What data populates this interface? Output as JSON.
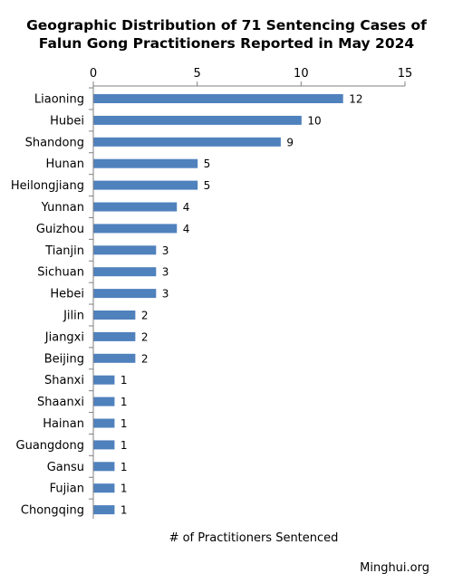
{
  "chart_data": {
    "type": "bar",
    "orientation": "horizontal",
    "title_line1": "Geographic Distribution of 71 Sentencing Cases of",
    "title_line2": "Falun Gong Practitioners Reported in May 2024",
    "xlabel": "# of Practitioners Sentenced",
    "ylabel": "",
    "xlim": [
      0,
      15
    ],
    "xticks": [
      0,
      5,
      10,
      15
    ],
    "x_axis_position": "top",
    "grid": false,
    "legend": "none",
    "bar_color": "#4f81bd",
    "data_labels": true,
    "categories": [
      "Liaoning",
      "Hubei",
      "Shandong",
      "Hunan",
      "Heilongjiang",
      "Yunnan",
      "Guizhou",
      "Tianjin",
      "Sichuan",
      "Hebei",
      "Jilin",
      "Jiangxi",
      "Beijing",
      "Shanxi",
      "Shaanxi",
      "Hainan",
      "Guangdong",
      "Gansu",
      "Fujian",
      "Chongqing"
    ],
    "values": [
      12,
      10,
      9,
      5,
      5,
      4,
      4,
      3,
      3,
      3,
      2,
      2,
      2,
      1,
      1,
      1,
      1,
      1,
      1,
      1
    ]
  },
  "credit": "Minghui.org"
}
